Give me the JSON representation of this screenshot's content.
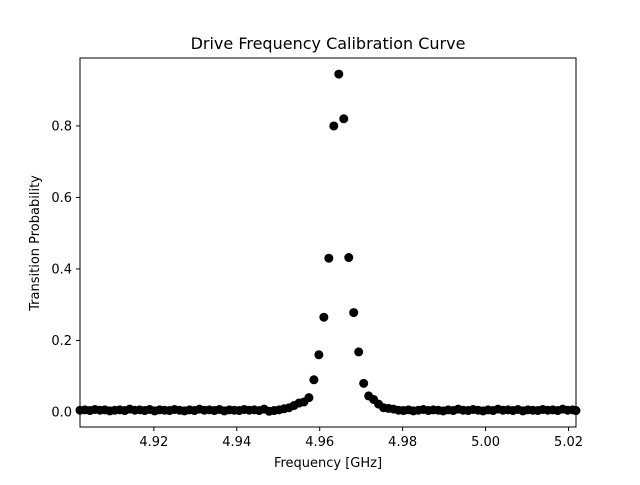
{
  "chart_data": {
    "type": "scatter",
    "title": "Drive Frequency Calibration Curve",
    "xlabel": "Frequency [GHz]",
    "ylabel": "Transition Probability",
    "xlim": [
      4.9022,
      5.0218
    ],
    "ylim": [
      -0.042,
      0.99
    ],
    "xticks": [
      4.92,
      4.94,
      4.96,
      4.98,
      5.0,
      5.02
    ],
    "xtick_labels": [
      "4.92",
      "4.94",
      "4.96",
      "4.98",
      "5.00",
      "5.02"
    ],
    "yticks": [
      0.0,
      0.2,
      0.4,
      0.6,
      0.8
    ],
    "ytick_labels": [
      "0.0",
      "0.2",
      "0.4",
      "0.6",
      "0.8"
    ],
    "grid": false,
    "marker_color": "#000000",
    "series": [
      {
        "x": [
          4.9022,
          4.9034,
          4.9046,
          4.9058,
          4.907,
          4.9082,
          4.9094,
          4.9106,
          4.9118,
          4.913,
          4.9142,
          4.9154,
          4.9166,
          4.9178,
          4.919,
          4.9202,
          4.9214,
          4.9226,
          4.9238,
          4.925,
          4.9262,
          4.9274,
          4.9286,
          4.9298,
          4.931,
          4.9322,
          4.9334,
          4.9346,
          4.9358,
          4.937,
          4.9382,
          4.9394,
          4.9406,
          4.9418,
          4.943,
          4.9442,
          4.9454,
          4.9466,
          4.9478,
          4.949,
          4.9502,
          4.9514,
          4.9526,
          4.9538,
          4.955,
          4.9562,
          4.9574,
          4.9586,
          4.9598,
          4.961,
          4.9622,
          4.9634,
          4.9646,
          4.9658,
          4.967,
          4.9682,
          4.9694,
          4.9706,
          4.9718,
          4.973,
          4.9742,
          4.9754,
          4.9766,
          4.9778,
          4.979,
          4.9802,
          4.9814,
          4.9826,
          4.9838,
          4.985,
          4.9862,
          4.9874,
          4.9886,
          4.9898,
          4.991,
          4.9922,
          4.9934,
          4.9946,
          4.9958,
          4.997,
          4.9982,
          4.9994,
          5.0006,
          5.0018,
          5.003,
          5.0042,
          5.0054,
          5.0066,
          5.0078,
          5.009,
          5.0102,
          5.0114,
          5.0126,
          5.0138,
          5.015,
          5.0162,
          5.0174,
          5.0186,
          5.0198,
          5.021,
          5.0218
        ],
        "y": [
          0.005,
          0.006,
          0.004,
          0.007,
          0.005,
          0.006,
          0.003,
          0.005,
          0.006,
          0.004,
          0.008,
          0.005,
          0.006,
          0.004,
          0.007,
          0.003,
          0.006,
          0.005,
          0.004,
          0.007,
          0.005,
          0.003,
          0.006,
          0.004,
          0.008,
          0.005,
          0.006,
          0.004,
          0.007,
          0.003,
          0.006,
          0.005,
          0.004,
          0.007,
          0.005,
          0.006,
          0.004,
          0.008,
          0.002,
          0.004,
          0.006,
          0.009,
          0.012,
          0.018,
          0.025,
          0.028,
          0.04,
          0.09,
          0.16,
          0.265,
          0.43,
          0.8,
          0.945,
          0.82,
          0.432,
          0.278,
          0.168,
          0.08,
          0.045,
          0.035,
          0.022,
          0.012,
          0.01,
          0.008,
          0.005,
          0.004,
          0.006,
          0.003,
          0.005,
          0.007,
          0.004,
          0.006,
          0.005,
          0.003,
          0.006,
          0.004,
          0.008,
          0.005,
          0.004,
          0.007,
          0.005,
          0.003,
          0.006,
          0.004,
          0.008,
          0.005,
          0.006,
          0.004,
          0.007,
          0.003,
          0.006,
          0.005,
          0.004,
          0.007,
          0.005,
          0.006,
          0.004,
          0.008,
          0.005,
          0.006,
          0.004
        ]
      }
    ]
  }
}
